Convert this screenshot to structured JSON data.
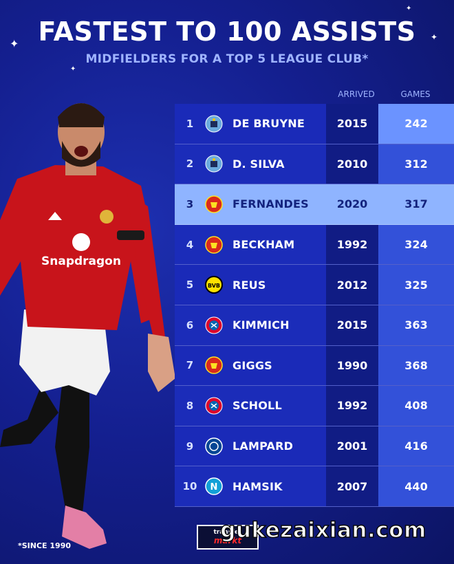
{
  "header": {
    "title": "FASTEST TO 100 ASSISTS",
    "subtitle": "MIDFIELDERS FOR A TOP 5 LEAGUE CLUB*"
  },
  "table": {
    "columns": {
      "arrived": "ARRIVED",
      "games": "GAMES"
    },
    "rows": [
      {
        "rank": "1",
        "name": "DE BRUYNE",
        "arrived": "2015",
        "games": "242",
        "club_icon": "man-city-crest-icon"
      },
      {
        "rank": "2",
        "name": "D. SILVA",
        "arrived": "2010",
        "games": "312",
        "club_icon": "man-city-crest-icon"
      },
      {
        "rank": "3",
        "name": "FERNANDES",
        "arrived": "2020",
        "games": "317",
        "club_icon": "man-united-crest-icon"
      },
      {
        "rank": "4",
        "name": "BECKHAM",
        "arrived": "1992",
        "games": "324",
        "club_icon": "man-united-crest-icon"
      },
      {
        "rank": "5",
        "name": "REUS",
        "arrived": "2012",
        "games": "325",
        "club_icon": "dortmund-crest-icon"
      },
      {
        "rank": "6",
        "name": "KIMMICH",
        "arrived": "2015",
        "games": "363",
        "club_icon": "bayern-crest-icon"
      },
      {
        "rank": "7",
        "name": "GIGGS",
        "arrived": "1990",
        "games": "368",
        "club_icon": "man-united-crest-icon"
      },
      {
        "rank": "8",
        "name": "SCHOLL",
        "arrived": "1992",
        "games": "408",
        "club_icon": "bayern-crest-icon"
      },
      {
        "rank": "9",
        "name": "LAMPARD",
        "arrived": "2001",
        "games": "416",
        "club_icon": "chelsea-crest-icon"
      },
      {
        "rank": "10",
        "name": "HAMSIK",
        "arrived": "2007",
        "games": "440",
        "club_icon": "napoli-crest-icon"
      }
    ]
  },
  "footnote": "*SINCE 1990",
  "logo": {
    "line1": "transfer",
    "line2": "markt"
  },
  "watermark": "gukezaixian.com",
  "colors": {
    "background": "#141f8f",
    "highlight_row": "#8fb4ff",
    "games_column": "#3351d9",
    "subtitle": "#9fb4ff"
  }
}
